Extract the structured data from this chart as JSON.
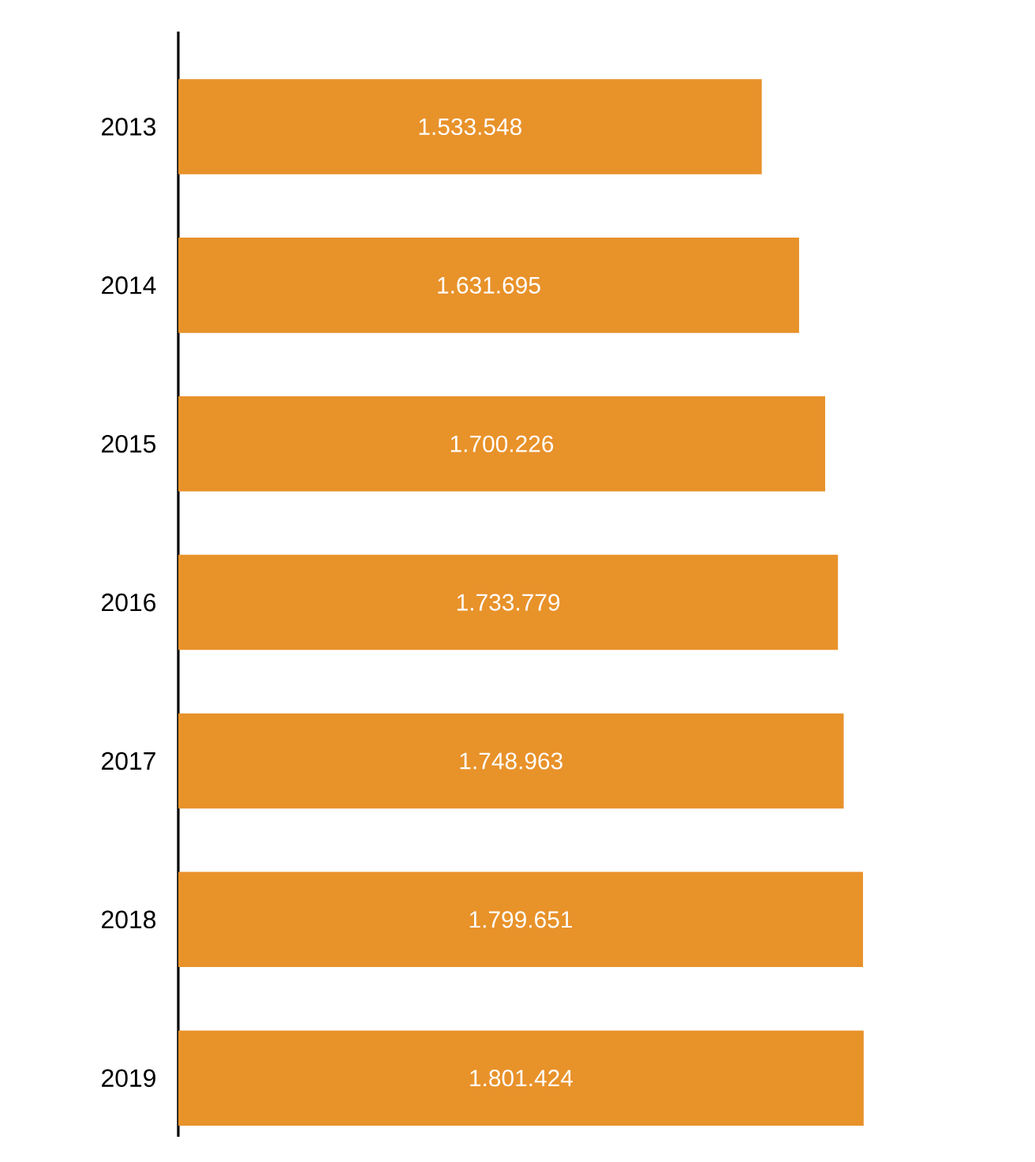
{
  "chart_data": {
    "type": "bar",
    "orientation": "horizontal",
    "categories": [
      "2013",
      "2014",
      "2015",
      "2016",
      "2017",
      "2018",
      "2019"
    ],
    "values": [
      1533548,
      1631695,
      1700226,
      1733779,
      1748963,
      1799651,
      1801424
    ],
    "value_labels": [
      "1.533.548",
      "1.631.695",
      "1.700.226",
      "1.733.779",
      "1.748.963",
      "1.799.651",
      "1.801.424"
    ],
    "color": "#e8922a",
    "tick_labels": "y"
  }
}
